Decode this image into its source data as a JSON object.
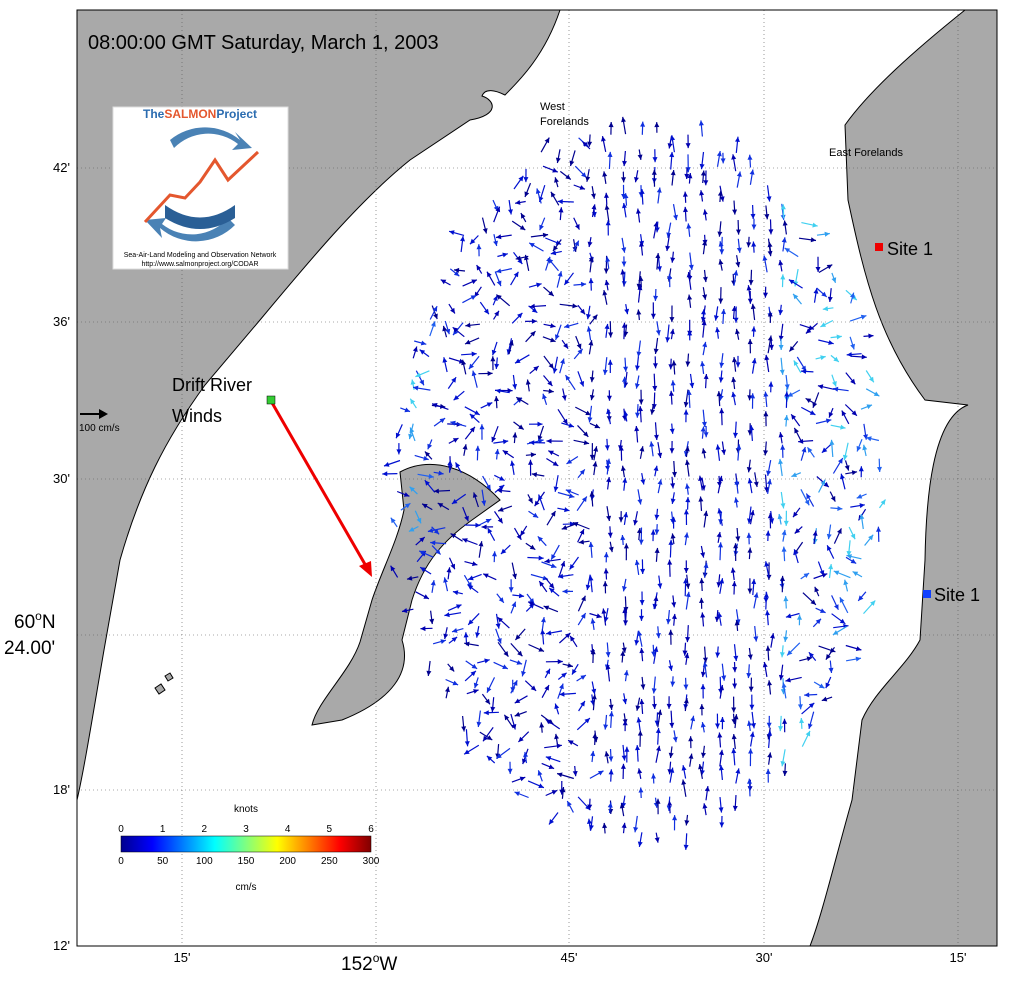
{
  "title": "08:00:00 GMT Saturday, March 1, 2003",
  "logo": {
    "prefix": "The",
    "brand": "SALMON",
    "suffix": "Project",
    "tagline": "Sea-Air-Land Modeling and Observation Network",
    "url": "http://www.salmonproject.org/CODAR"
  },
  "places": {
    "west_forelands": [
      "West",
      "Forelands"
    ],
    "east_forelands": "East Forelands",
    "site_red": "Site 1",
    "site_blue": "Site 1",
    "drift_river": [
      "Drift River",
      "Winds"
    ]
  },
  "scale_label": "100 cm/s",
  "lat_labels": [
    "42'",
    "36'",
    "30'",
    "18'",
    "12'"
  ],
  "lat_main": {
    "deg": "60",
    "sup": "o",
    "hemi": "N",
    "min": "24.00'"
  },
  "lon_labels": [
    "15'",
    "45'",
    "30'",
    "15'"
  ],
  "lon_main": {
    "deg": "152",
    "sup": "o",
    "hemi": "W"
  },
  "colorbar": {
    "top_unit": "knots",
    "knots": [
      "0",
      "1",
      "2",
      "3",
      "4",
      "5",
      "6"
    ],
    "bottom_unit": "cm/s",
    "cms": [
      "0",
      "50",
      "100",
      "150",
      "200",
      "250",
      "300"
    ]
  }
}
